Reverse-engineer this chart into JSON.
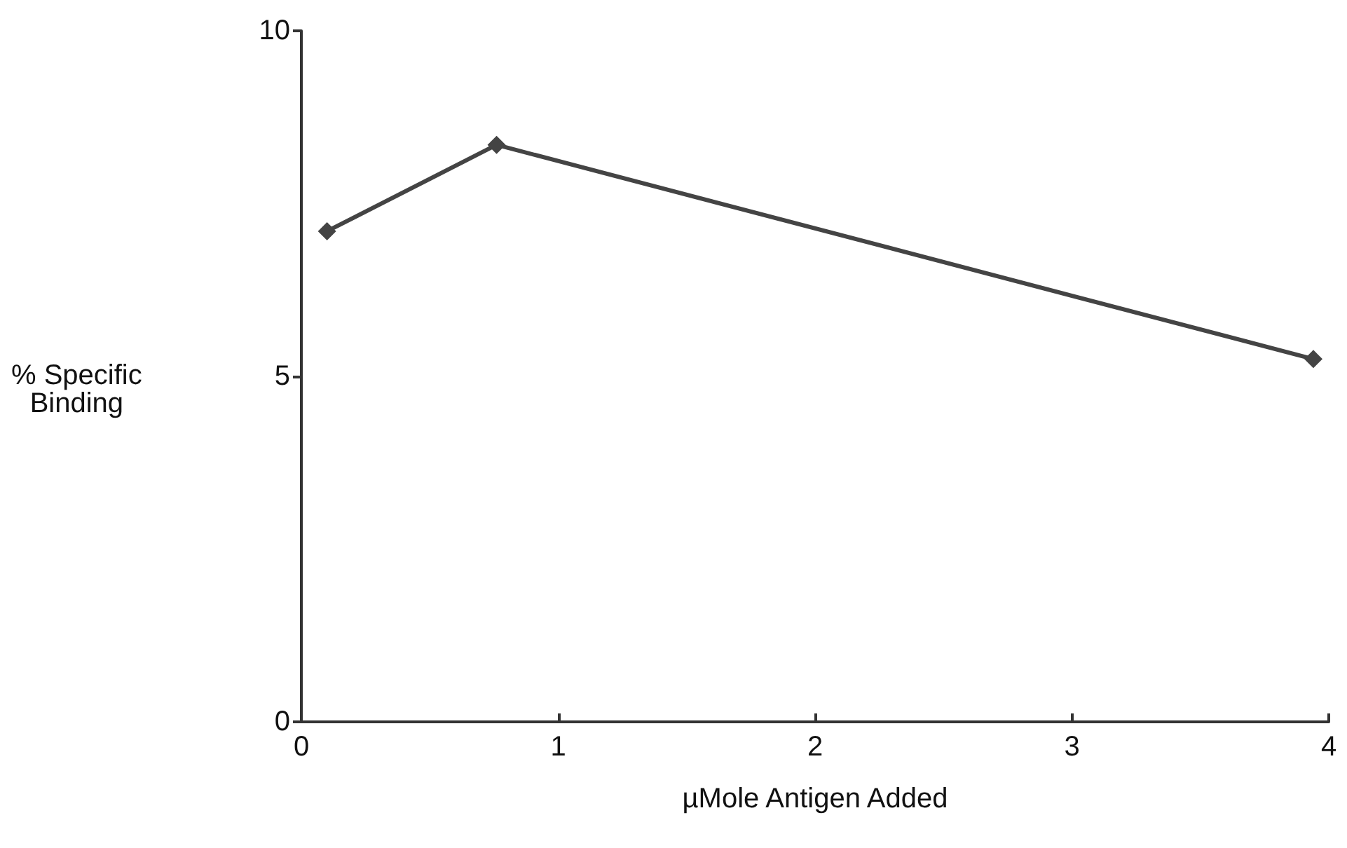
{
  "chart_data": {
    "type": "line",
    "xlabel": "µMole Antigen Added",
    "ylabel": "% Specific\nBinding",
    "x": [
      0.1,
      0.76,
      3.94
    ],
    "series": [
      {
        "color": "#444444",
        "values": [
          7.1,
          8.35,
          5.25
        ]
      }
    ],
    "xlim": [
      0,
      4
    ],
    "xticks": [
      0,
      1,
      2,
      3,
      4
    ],
    "ylim": [
      0,
      10
    ],
    "yticks": [
      0,
      5,
      10
    ],
    "marker": "diamond",
    "line_style": "solid",
    "grid": false
  }
}
